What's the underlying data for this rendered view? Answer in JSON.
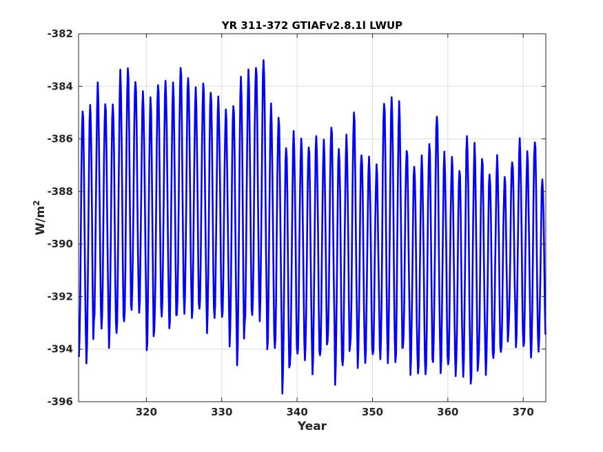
{
  "chart_data": {
    "type": "line",
    "title": "YR 311-372 GTIAFv2.8.1l LWUP",
    "xlabel": "Year",
    "ylabel_base": "W/m",
    "ylabel_sup": "2",
    "xlim": [
      311,
      373
    ],
    "ylim": [
      -396,
      -382
    ],
    "xticks": [
      320,
      330,
      340,
      350,
      360,
      370
    ],
    "yticks": [
      -396,
      -394,
      -392,
      -390,
      -388,
      -386,
      -384,
      -382
    ],
    "grid": true,
    "line_color": "#0000ff",
    "series": [
      {
        "x_start": 311,
        "samples_per_year": 12,
        "annual_max": [
          -384.6,
          -384.5,
          -383.8,
          -384.4,
          -384.4,
          -383.3,
          -383.1,
          -383.5,
          -384.1,
          -384.3,
          -383.6,
          -383.6,
          -383.8,
          -383.0,
          -383.4,
          -384.0,
          -383.7,
          -383.9,
          -384.3,
          -384.8,
          -384.4,
          -383.4,
          -383.3,
          -383.0,
          -382.7,
          -384.6,
          -385.0,
          -386.0,
          -385.6,
          -385.9,
          -386.0,
          -385.7,
          -386.0,
          -385.3,
          -386.1,
          -385.8,
          -384.8,
          -386.3,
          -386.6,
          -386.9,
          -384.3,
          -384.2,
          -384.5,
          -386.2,
          -386.8,
          -386.6,
          -386.0,
          -384.8,
          -386.4,
          -386.6,
          -386.9,
          -385.7,
          -386.1,
          -386.5,
          -387.1,
          -386.6,
          -387.3,
          -386.6,
          -385.9,
          -386.4,
          -385.8,
          -387.4
        ],
        "annual_min": [
          -394.5,
          -394.6,
          -393.2,
          -393.5,
          -394.0,
          -393.6,
          -393.3,
          -392.6,
          -392.7,
          -394.4,
          -393.5,
          -392.8,
          -393.5,
          -393.0,
          -392.7,
          -393.0,
          -392.8,
          -393.5,
          -392.9,
          -393.1,
          -394.1,
          -394.7,
          -393.3,
          -393.0,
          -393.0,
          -394.2,
          -394.3,
          -395.8,
          -394.7,
          -394.5,
          -394.6,
          -395.0,
          -394.5,
          -394.0,
          -395.4,
          -394.8,
          -394.2,
          -394.8,
          -394.6,
          -394.5,
          -394.6,
          -394.6,
          -394.8,
          -394.2,
          -395.0,
          -395.1,
          -395.3,
          -394.6,
          -395.0,
          -394.9,
          -395.2,
          -395.1,
          -395.6,
          -394.8,
          -395.0,
          -394.5,
          -394.4,
          -393.4,
          -394.0,
          -394.2,
          -394.5,
          -394.1
        ]
      }
    ]
  }
}
